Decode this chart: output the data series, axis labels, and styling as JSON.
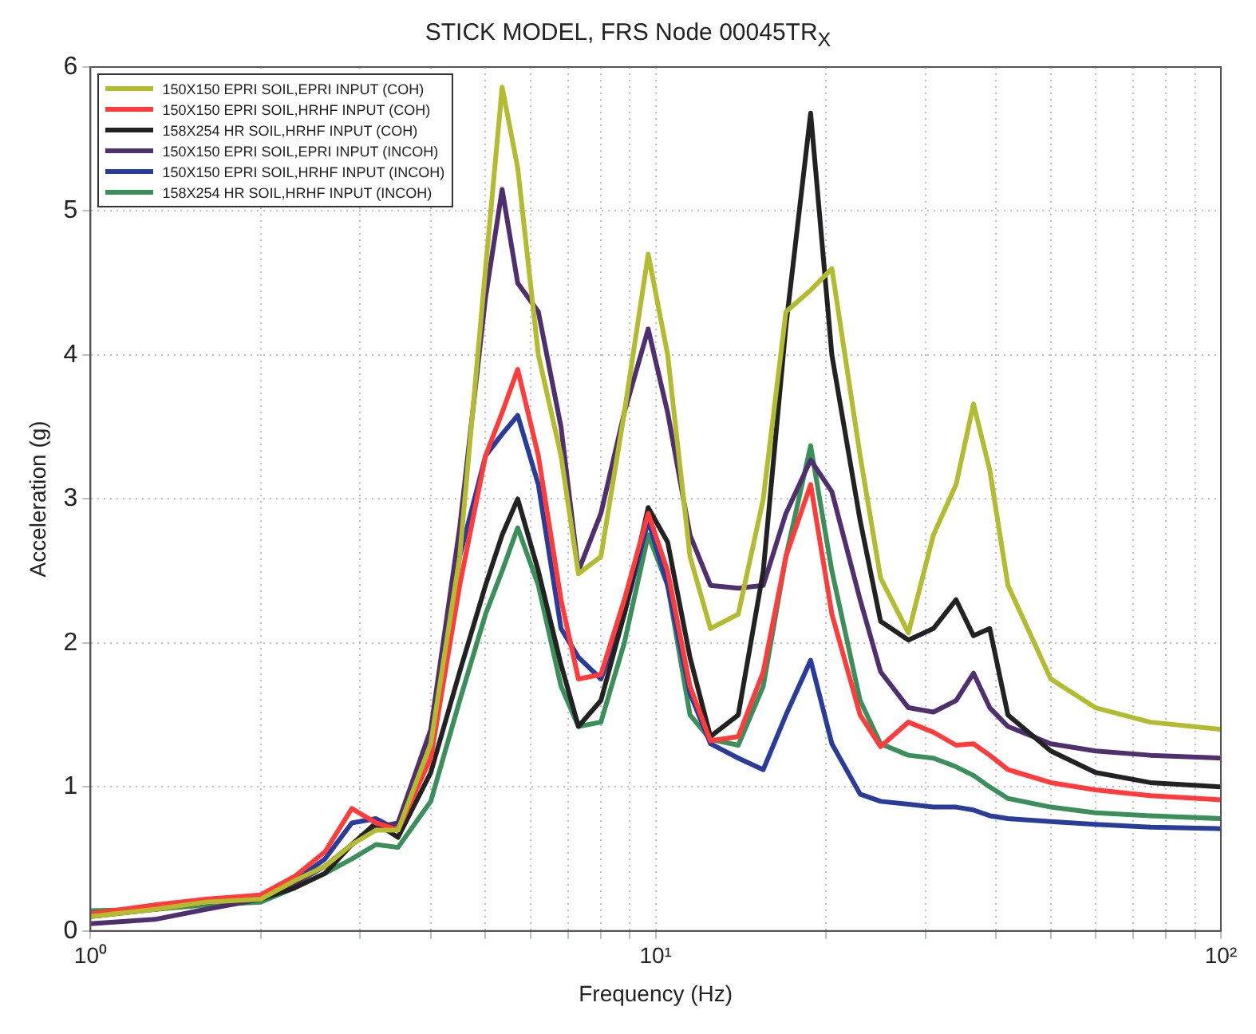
{
  "chart_data": {
    "type": "line",
    "title": "STICK MODEL, FRS Node 00045TR$_{X}$",
    "xlabel": "Frequency (Hz)",
    "ylabel": "Acceleration (g)",
    "x": [
      1,
      1.3,
      1.6,
      2,
      2.3,
      2.6,
      2.9,
      3.2,
      3.5,
      4,
      4.5,
      5,
      5.35,
      5.7,
      6.2,
      6.8,
      7.3,
      8,
      8.8,
      9.7,
      10.5,
      11.5,
      12.5,
      14,
      15.5,
      17,
      18.8,
      20.5,
      23,
      25,
      28,
      31,
      34,
      36.5,
      39,
      42,
      50,
      60,
      75,
      100
    ],
    "series": [
      {
        "name": "150X150 EPRI SOIL,EPRI INPUT (COH)",
        "color": "#b3bb2e",
        "values": [
          0.1,
          0.15,
          0.2,
          0.22,
          0.35,
          0.45,
          0.6,
          0.7,
          0.7,
          1.3,
          2.6,
          4.6,
          5.86,
          5.3,
          4.0,
          3.3,
          2.48,
          2.6,
          3.6,
          4.7,
          4.0,
          2.6,
          2.1,
          2.2,
          3.0,
          4.3,
          4.45,
          4.6,
          3.3,
          2.45,
          2.07,
          2.75,
          3.1,
          3.66,
          3.2,
          2.4,
          1.75,
          1.55,
          1.45,
          1.4
        ]
      },
      {
        "name": "150X150 EPRI SOIL,HRHF INPUT (COH)",
        "color": "#ff3b3b",
        "values": [
          0.12,
          0.18,
          0.22,
          0.25,
          0.38,
          0.55,
          0.85,
          0.75,
          0.7,
          1.2,
          2.4,
          3.3,
          3.6,
          3.9,
          3.3,
          2.3,
          1.75,
          1.78,
          2.3,
          2.9,
          2.5,
          1.7,
          1.32,
          1.35,
          1.8,
          2.6,
          3.1,
          2.2,
          1.5,
          1.28,
          1.45,
          1.38,
          1.29,
          1.3,
          1.22,
          1.12,
          1.03,
          0.98,
          0.94,
          0.91
        ]
      },
      {
        "name": "158X254 HR SOIL,HRHF INPUT (COH)",
        "color": "#222222",
        "values": [
          0.1,
          0.15,
          0.2,
          0.22,
          0.3,
          0.4,
          0.6,
          0.75,
          0.65,
          1.1,
          1.8,
          2.4,
          2.75,
          3.0,
          2.5,
          1.85,
          1.42,
          1.6,
          2.2,
          2.94,
          2.7,
          1.9,
          1.35,
          1.5,
          2.5,
          4.2,
          5.68,
          4.0,
          2.85,
          2.15,
          2.02,
          2.1,
          2.3,
          2.05,
          2.1,
          1.5,
          1.25,
          1.1,
          1.03,
          1.0
        ]
      },
      {
        "name": "150X150 EPRI SOIL,EPRI INPUT (INCOH)",
        "color": "#4f2f6e",
        "values": [
          0.05,
          0.08,
          0.15,
          0.22,
          0.33,
          0.45,
          0.6,
          0.72,
          0.75,
          1.4,
          2.8,
          4.4,
          5.15,
          4.5,
          4.3,
          3.5,
          2.5,
          2.9,
          3.6,
          4.18,
          3.6,
          2.75,
          2.4,
          2.38,
          2.4,
          2.9,
          3.27,
          3.05,
          2.3,
          1.8,
          1.55,
          1.52,
          1.6,
          1.79,
          1.55,
          1.42,
          1.3,
          1.25,
          1.22,
          1.2
        ]
      },
      {
        "name": "150X150 EPRI SOIL,HRHF INPUT (INCOH)",
        "color": "#2a3c9a",
        "values": [
          0.12,
          0.16,
          0.2,
          0.24,
          0.35,
          0.5,
          0.75,
          0.78,
          0.7,
          1.3,
          2.6,
          3.3,
          3.45,
          3.58,
          3.1,
          2.1,
          1.9,
          1.75,
          2.2,
          2.85,
          2.4,
          1.65,
          1.3,
          1.2,
          1.12,
          1.5,
          1.88,
          1.3,
          0.95,
          0.9,
          0.88,
          0.86,
          0.86,
          0.84,
          0.8,
          0.78,
          0.76,
          0.74,
          0.72,
          0.71
        ]
      },
      {
        "name": "158X254 HR SOIL,HRHF INPUT (INCOH)",
        "color": "#3a8f5a",
        "values": [
          0.14,
          0.15,
          0.18,
          0.2,
          0.3,
          0.4,
          0.5,
          0.6,
          0.58,
          0.9,
          1.6,
          2.2,
          2.5,
          2.8,
          2.4,
          1.7,
          1.42,
          1.45,
          2.0,
          2.75,
          2.4,
          1.5,
          1.33,
          1.29,
          1.7,
          2.6,
          3.37,
          2.5,
          1.6,
          1.3,
          1.22,
          1.2,
          1.14,
          1.08,
          1.0,
          0.92,
          0.86,
          0.82,
          0.8,
          0.78
        ]
      }
    ],
    "log": "x",
    "xlim": [
      1,
      100
    ],
    "ylim": [
      0,
      6
    ],
    "xticks": [
      {
        "value": 1,
        "label": "10⁰"
      },
      {
        "value": 2,
        "label": null
      },
      {
        "value": 3,
        "label": null
      },
      {
        "value": 4,
        "label": null
      },
      {
        "value": 5,
        "label": null
      },
      {
        "value": 6,
        "label": null
      },
      {
        "value": 7,
        "label": null
      },
      {
        "value": 8,
        "label": null
      },
      {
        "value": 9,
        "label": null
      },
      {
        "value": 10,
        "label": "10¹"
      },
      {
        "value": 20,
        "label": null
      },
      {
        "value": 30,
        "label": null
      },
      {
        "value": 40,
        "label": null
      },
      {
        "value": 50,
        "label": null
      },
      {
        "value": 60,
        "label": null
      },
      {
        "value": 70,
        "label": null
      },
      {
        "value": 80,
        "label": null
      },
      {
        "value": 90,
        "label": null
      },
      {
        "value": 100,
        "label": "10²"
      }
    ],
    "yticks": [
      0,
      1,
      2,
      3,
      4,
      5,
      6
    ],
    "grid": true,
    "legend": "top left",
    "marker": "none",
    "line_style": "solid"
  }
}
